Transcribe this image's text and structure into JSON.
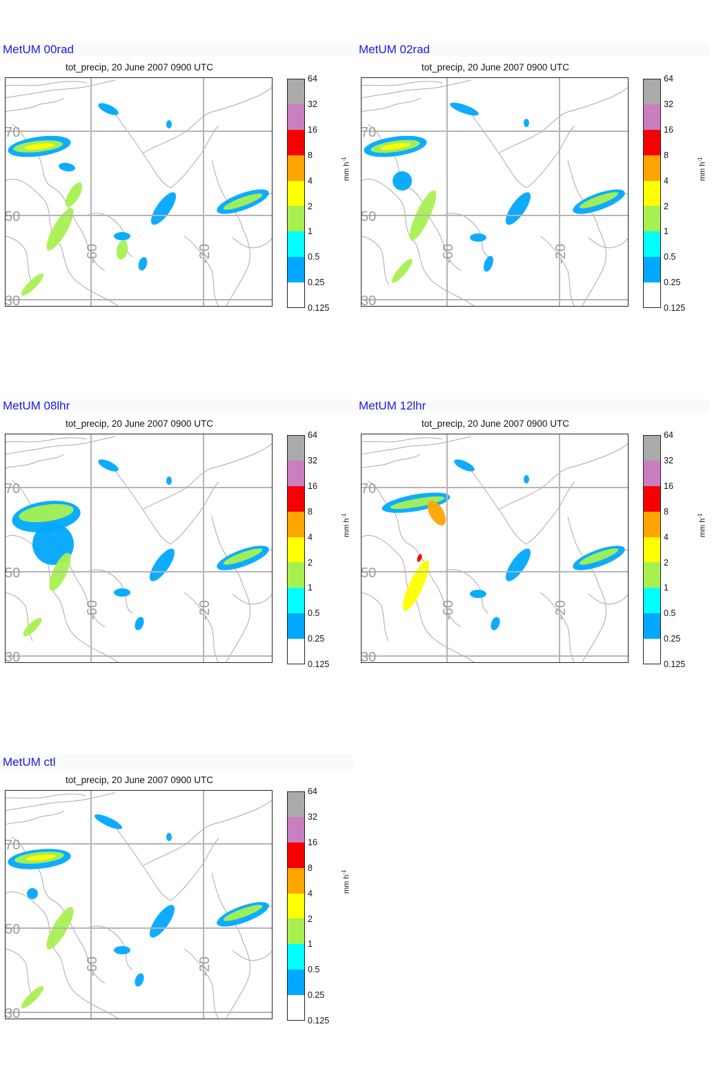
{
  "unit": "mm h",
  "unit_sup": "-1",
  "colorbar": {
    "ticks": [
      "64",
      "32",
      "16",
      "8",
      "4",
      "2",
      "1",
      "0.5",
      "0.25",
      "0.125"
    ],
    "colors": [
      "#aaaaaa",
      "#c97fbf",
      "#f50000",
      "#ffa500",
      "#ffff00",
      "#a8f050",
      "#00ffff",
      "#00a8ff",
      "#ffffff"
    ]
  },
  "grid": {
    "lat": [
      "70",
      "50",
      "30"
    ],
    "lon": [
      "-60",
      "-20"
    ]
  },
  "colors": {
    "title": "#1a1ae6",
    "coast": "#a8a8a8",
    "grid": "#b4b4b4"
  },
  "panels": [
    {
      "title": "MetUM 00rad",
      "subtitle": "tot_precip, 20 June 2007 0900 UTC",
      "variant": 0
    },
    {
      "title": "MetUM 02rad",
      "subtitle": "tot_precip, 20 June 2007 0900 UTC",
      "variant": 1
    },
    {
      "title": "MetUM 08lhr",
      "subtitle": "tot_precip, 20 June 2007 0900 UTC",
      "variant": 2
    },
    {
      "title": "MetUM 12lhr",
      "subtitle": "tot_precip, 20 June 2007 0900 UTC",
      "variant": 3
    },
    {
      "title": "MetUM ctl",
      "subtitle": "tot_precip, 20 June 2007 0900 UTC",
      "variant": 4
    }
  ]
}
